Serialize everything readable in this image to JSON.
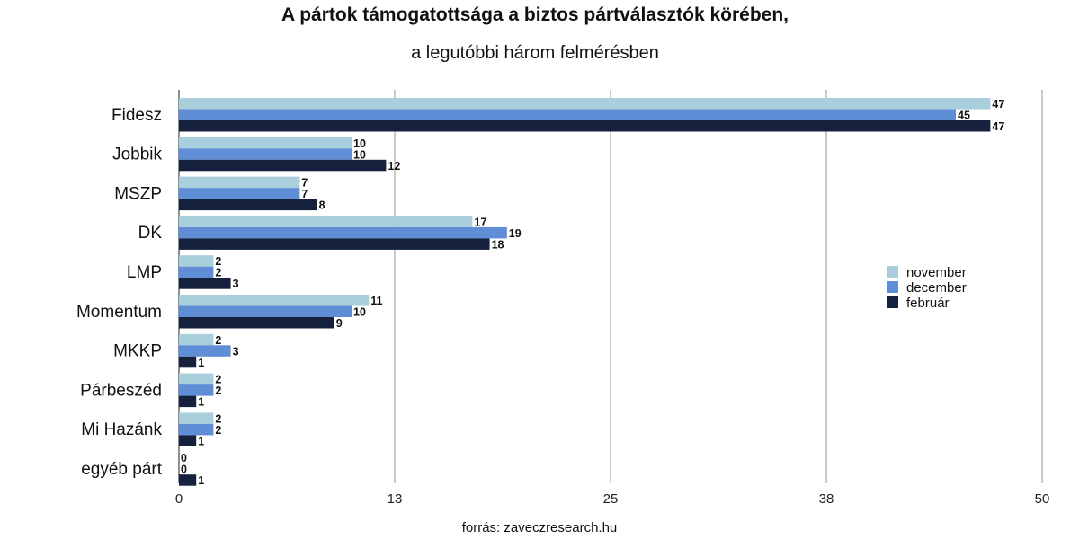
{
  "chart_data": {
    "type": "bar",
    "orientation": "horizontal",
    "title": "A pártok támogatottsága a biztos pártválasztók körében,",
    "subtitle": "a legutóbbi három felmérésben",
    "source": "forrás: zaveczresearch.hu",
    "categories": [
      "Fidesz",
      "Jobbik",
      "MSZP",
      "DK",
      "LMP",
      "Momentum",
      "MKKP",
      "Párbeszéd",
      "Mi Hazánk",
      "egyéb párt"
    ],
    "series": [
      {
        "name": "november",
        "color": "#a9cfdc",
        "values": [
          47,
          10,
          7,
          17,
          2,
          11,
          2,
          2,
          2,
          0
        ]
      },
      {
        "name": "december",
        "color": "#5f8dd6",
        "values": [
          45,
          10,
          7,
          19,
          2,
          10,
          3,
          2,
          2,
          0
        ]
      },
      {
        "name": "február",
        "color": "#16213e",
        "values": [
          47,
          12,
          8,
          18,
          3,
          9,
          1,
          1,
          1,
          1
        ]
      }
    ],
    "xlim": [
      0,
      50
    ],
    "xticks": [
      0,
      12.5,
      25,
      37.5,
      50
    ],
    "xtick_labels": [
      "0",
      "13",
      "25",
      "38",
      "50"
    ],
    "grid": true,
    "legend": "right"
  }
}
